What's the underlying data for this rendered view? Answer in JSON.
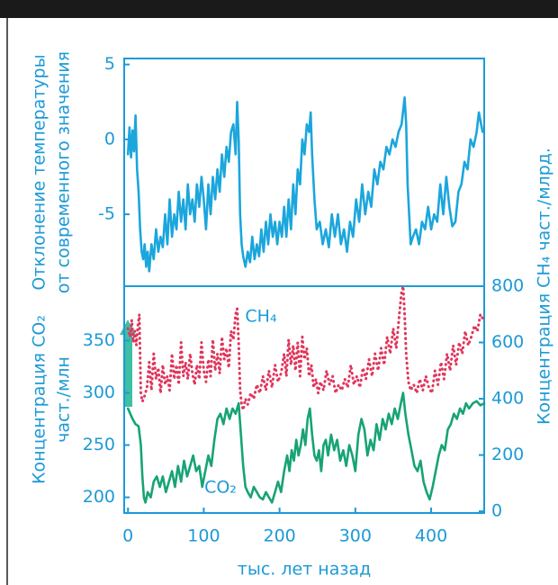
{
  "chart_data": [
    {
      "type": "line",
      "ylabel": [
        "Отклонение температуры",
        "от современного значения"
      ],
      "xlim": [
        -5,
        470
      ],
      "ylim": [
        -9.8,
        5.4
      ],
      "yticks": [
        -5,
        0,
        5
      ],
      "series": [
        {
          "name": "temperature",
          "color": "#1ba6dc",
          "style": "solid",
          "x": [
            0,
            2,
            4,
            6,
            8,
            10,
            12,
            14,
            16,
            18,
            20,
            22,
            24,
            26,
            28,
            31,
            34,
            37,
            40,
            43,
            46,
            49,
            52,
            55,
            58,
            61,
            64,
            67,
            70,
            73,
            76,
            79,
            82,
            85,
            88,
            91,
            94,
            97,
            100,
            103,
            106,
            109,
            112,
            115,
            118,
            121,
            124,
            127,
            130,
            133,
            136,
            139,
            142,
            144,
            146,
            148,
            150,
            152,
            155,
            158,
            161,
            164,
            167,
            170,
            173,
            176,
            179,
            182,
            185,
            188,
            191,
            194,
            197,
            200,
            203,
            206,
            209,
            212,
            215,
            218,
            221,
            224,
            227,
            230,
            233,
            236,
            239,
            241,
            243,
            246,
            249,
            253,
            257,
            261,
            265,
            269,
            273,
            277,
            281,
            285,
            289,
            293,
            297,
            301,
            305,
            309,
            313,
            317,
            321,
            325,
            329,
            333,
            337,
            341,
            345,
            349,
            353,
            357,
            361,
            365,
            367,
            369,
            371,
            373,
            376,
            380,
            384,
            388,
            392,
            396,
            400,
            404,
            408,
            412,
            416,
            420,
            424,
            428,
            432,
            436,
            440,
            444,
            448,
            452,
            456,
            460,
            463,
            466,
            468
          ],
          "values": [
            -1,
            0.8,
            -1.2,
            0.6,
            -0.8,
            1.6,
            -2,
            -3.5,
            -6,
            -7.5,
            -8,
            -7,
            -8.5,
            -7.5,
            -8.8,
            -7,
            -8,
            -6,
            -7.5,
            -6.5,
            -7.2,
            -5,
            -7,
            -4,
            -6.5,
            -5,
            -6,
            -3.5,
            -5.5,
            -4,
            -6,
            -3,
            -5,
            -4,
            -5.5,
            -3,
            -4.5,
            -2.5,
            -4,
            -6,
            -3,
            -5,
            -2.5,
            -4,
            -2,
            -3.5,
            -1,
            -2.5,
            -0.5,
            -1.5,
            0.5,
            1,
            -1,
            2.5,
            0,
            -5,
            -7,
            -7.8,
            -8.5,
            -7.5,
            -8.2,
            -6.5,
            -8,
            -7,
            -7.8,
            -6,
            -7.5,
            -5.5,
            -7,
            -5,
            -6.5,
            -5.5,
            -7,
            -5.5,
            -6.5,
            -4.5,
            -6.5,
            -4,
            -6,
            -3,
            -5,
            -2,
            -3,
            0,
            -1,
            1,
            0.5,
            1.8,
            -1,
            -4,
            -6,
            -5.5,
            -7,
            -6,
            -7.2,
            -5,
            -6.5,
            -5,
            -7,
            -6,
            -7.5,
            -5.5,
            -6.5,
            -4,
            -5.5,
            -3,
            -5,
            -3.5,
            -4.5,
            -2,
            -3,
            -1.5,
            -2,
            -0.5,
            -1,
            0,
            -0.5,
            0.5,
            1,
            2.8,
            1,
            -3,
            -5,
            -7,
            -6.5,
            -6,
            -7,
            -5.5,
            -6,
            -4.5,
            -6,
            -5,
            -5.5,
            -3,
            -5,
            -2.5,
            -4.5,
            -5.8,
            -5.5,
            -3.5,
            -3,
            -1.5,
            -2,
            0,
            -0.5,
            0.5,
            1.8,
            1,
            0.5
          ]
        }
      ]
    },
    {
      "type": "line",
      "ylabel": [
        "Концентрация CO₂",
        "част./млн"
      ],
      "y2label": "Концентрация CH₄ част./млрд.",
      "xlabel": "тыс. лет назад",
      "annotations": [
        "CH₄",
        "CO₂"
      ],
      "xlim": [
        -5,
        470
      ],
      "xticks": [
        0,
        100,
        200,
        300,
        400
      ],
      "ylim": [
        185,
        402
      ],
      "yticks": [
        200,
        250,
        300,
        350
      ],
      "y2lim": [
        -6,
        800
      ],
      "y2ticks": [
        0,
        200,
        400,
        600,
        800
      ],
      "series": [
        {
          "name": "CO₂",
          "color": "#17a376",
          "style": "solid",
          "x": [
            0,
            3,
            6,
            10,
            14,
            17,
            19,
            21,
            23,
            26,
            30,
            34,
            38,
            42,
            46,
            50,
            54,
            58,
            62,
            66,
            70,
            74,
            78,
            82,
            86,
            90,
            94,
            98,
            102,
            106,
            110,
            114,
            118,
            122,
            126,
            130,
            134,
            138,
            142,
            146,
            149,
            152,
            155,
            158,
            162,
            166,
            170,
            174,
            178,
            182,
            186,
            190,
            194,
            198,
            202,
            206,
            210,
            213,
            216,
            219,
            222,
            225,
            228,
            231,
            234,
            237,
            240,
            243,
            246,
            249,
            252,
            255,
            258,
            261,
            264,
            268,
            272,
            276,
            280,
            284,
            288,
            292,
            296,
            300,
            304,
            308,
            312,
            316,
            320,
            324,
            328,
            332,
            336,
            340,
            344,
            348,
            352,
            356,
            360,
            363,
            366,
            370,
            374,
            378,
            382,
            386,
            390,
            394,
            398,
            402,
            406,
            410,
            414,
            418,
            422,
            426,
            430,
            434,
            438,
            442,
            446,
            450,
            455,
            460,
            465,
            470
          ],
          "values": [
            285,
            280,
            275,
            270,
            268,
            250,
            220,
            200,
            195,
            205,
            200,
            215,
            220,
            210,
            220,
            205,
            215,
            225,
            210,
            230,
            215,
            235,
            220,
            230,
            240,
            225,
            230,
            210,
            225,
            240,
            230,
            255,
            275,
            280,
            270,
            285,
            275,
            285,
            280,
            290,
            260,
            230,
            210,
            205,
            200,
            210,
            205,
            200,
            198,
            205,
            200,
            195,
            205,
            215,
            205,
            225,
            240,
            225,
            245,
            235,
            255,
            240,
            250,
            265,
            250,
            275,
            285,
            260,
            240,
            235,
            245,
            225,
            250,
            255,
            240,
            260,
            245,
            255,
            235,
            245,
            230,
            250,
            240,
            225,
            260,
            275,
            265,
            240,
            255,
            245,
            270,
            255,
            275,
            265,
            280,
            270,
            285,
            275,
            290,
            300,
            280,
            260,
            245,
            230,
            225,
            235,
            215,
            205,
            198,
            210,
            225,
            240,
            250,
            245,
            265,
            270,
            280,
            275,
            285,
            280,
            290,
            285,
            290,
            292,
            288,
            290
          ]
        },
        {
          "name": "CH₄",
          "color": "#e0365c",
          "style": "dotted",
          "axis": "y2",
          "x": [
            0,
            3,
            5,
            7,
            9,
            11,
            13,
            15,
            17,
            19,
            22,
            25,
            28,
            31,
            34,
            37,
            40,
            43,
            46,
            49,
            52,
            55,
            58,
            61,
            64,
            67,
            70,
            73,
            76,
            79,
            82,
            85,
            88,
            91,
            94,
            97,
            100,
            103,
            106,
            109,
            112,
            115,
            118,
            121,
            124,
            127,
            130,
            133,
            136,
            139,
            142,
            144,
            146,
            148,
            150,
            152,
            155,
            158,
            162,
            166,
            170,
            174,
            178,
            182,
            186,
            190,
            194,
            198,
            202,
            206,
            209,
            212,
            215,
            218,
            221,
            224,
            227,
            230,
            233,
            236,
            239,
            242,
            245,
            248,
            251,
            254,
            258,
            262,
            266,
            270,
            274,
            278,
            282,
            286,
            290,
            294,
            298,
            302,
            306,
            310,
            314,
            318,
            322,
            326,
            330,
            334,
            338,
            342,
            346,
            350,
            354,
            358,
            361,
            363,
            365,
            367,
            370,
            373,
            377,
            381,
            385,
            389,
            393,
            397,
            401,
            405,
            409,
            413,
            417,
            421,
            425,
            429,
            433,
            437,
            441,
            445,
            449,
            453,
            457,
            461,
            465,
            469
          ],
          "values": [
            650,
            620,
            680,
            600,
            640,
            590,
            660,
            700,
            420,
            390,
            410,
            440,
            530,
            430,
            560,
            470,
            510,
            420,
            520,
            450,
            480,
            430,
            560,
            470,
            520,
            450,
            600,
            480,
            530,
            470,
            560,
            490,
            450,
            520,
            470,
            600,
            500,
            460,
            540,
            480,
            610,
            500,
            560,
            490,
            620,
            540,
            580,
            510,
            640,
            610,
            700,
            720,
            600,
            430,
            380,
            360,
            400,
            380,
            420,
            400,
            450,
            420,
            480,
            430,
            500,
            440,
            520,
            460,
            490,
            560,
            480,
            610,
            520,
            590,
            500,
            600,
            480,
            620,
            540,
            580,
            480,
            520,
            440,
            470,
            420,
            460,
            430,
            500,
            450,
            480,
            420,
            450,
            430,
            470,
            440,
            520,
            450,
            480,
            440,
            510,
            470,
            540,
            480,
            560,
            500,
            580,
            520,
            620,
            560,
            650,
            580,
            700,
            780,
            800,
            700,
            560,
            460,
            430,
            450,
            420,
            470,
            430,
            480,
            440,
            420,
            500,
            450,
            530,
            470,
            560,
            500,
            590,
            520,
            600,
            560,
            640,
            590,
            620,
            660,
            640,
            700,
            680
          ]
        }
      ]
    }
  ]
}
